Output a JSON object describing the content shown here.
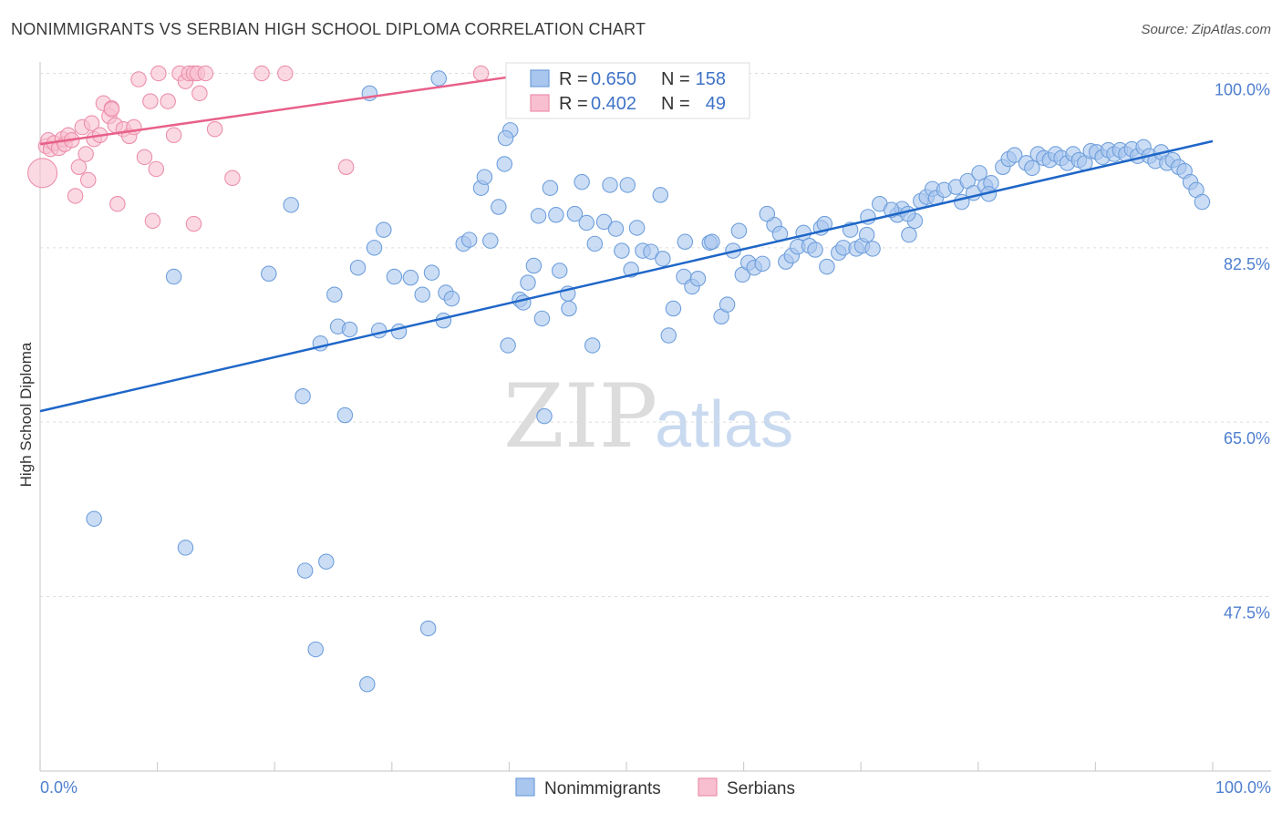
{
  "header": {
    "title": "NONIMMIGRANTS VS SERBIAN HIGH SCHOOL DIPLOMA CORRELATION CHART",
    "source": "Source: ZipAtlas.com"
  },
  "watermark": {
    "zip": "ZIP",
    "atlas": "atlas"
  },
  "legend": {
    "nonimmigrants": {
      "r_label": "R =",
      "r_value": "0.650",
      "n_label": "N =",
      "n_value": "158"
    },
    "serbians": {
      "r_label": "R =",
      "r_value": "0.402",
      "n_label": "N =",
      "n_value": "49"
    }
  },
  "colors": {
    "nonimmigrants_fill": "#a9c6ee",
    "nonimmigrants_stroke": "#6f9fdc",
    "nonimmigrants_line": "#1e66c8",
    "serbians_fill": "#f8bfd0",
    "serbians_stroke": "#ec8fab",
    "serbians_line": "#e8608a"
  },
  "chart_data": {
    "type": "scatter",
    "title": "NONIMMIGRANTS VS SERBIAN HIGH SCHOOL DIPLOMA CORRELATION CHART",
    "xlabel": "",
    "ylabel": "High School Diploma",
    "xlim": [
      0,
      100
    ],
    "ylim": [
      30,
      102
    ],
    "x_tick_labels": [
      "0.0%",
      "100.0%"
    ],
    "y_ticks": [
      47.5,
      65.0,
      82.5,
      100.0
    ],
    "y_tick_labels": [
      "47.5%",
      "65.0%",
      "82.5%",
      "100.0%"
    ],
    "grid": true,
    "series": [
      {
        "name": "Nonimmigrants",
        "R": 0.65,
        "N": 158,
        "trend": {
          "x": [
            0,
            100
          ],
          "y": [
            66.1,
            93.2
          ]
        },
        "points": [
          [
            4.6,
            55.3
          ],
          [
            11.4,
            79.6
          ],
          [
            12.4,
            52.4
          ],
          [
            19.5,
            79.9
          ],
          [
            21.4,
            86.8
          ],
          [
            22.4,
            67.6
          ],
          [
            22.6,
            50.1
          ],
          [
            23.5,
            42.2
          ],
          [
            23.9,
            72.9
          ],
          [
            24.4,
            51.0
          ],
          [
            25.1,
            77.8
          ],
          [
            25.4,
            74.6
          ],
          [
            26.0,
            65.7
          ],
          [
            26.4,
            74.3
          ],
          [
            27.1,
            80.5
          ],
          [
            27.9,
            38.7
          ],
          [
            28.1,
            98.0
          ],
          [
            28.5,
            82.5
          ],
          [
            28.9,
            74.2
          ],
          [
            29.3,
            84.3
          ],
          [
            30.2,
            79.6
          ],
          [
            30.6,
            74.1
          ],
          [
            31.6,
            79.5
          ],
          [
            32.6,
            77.8
          ],
          [
            33.1,
            44.3
          ],
          [
            33.4,
            80.0
          ],
          [
            34.0,
            99.5
          ],
          [
            34.4,
            75.2
          ],
          [
            34.6,
            78.0
          ],
          [
            35.1,
            77.4
          ],
          [
            36.1,
            82.9
          ],
          [
            36.6,
            83.3
          ],
          [
            37.6,
            88.5
          ],
          [
            37.9,
            89.6
          ],
          [
            38.4,
            83.2
          ],
          [
            39.1,
            86.6
          ],
          [
            39.6,
            90.9
          ],
          [
            39.9,
            72.7
          ],
          [
            40.1,
            94.3
          ],
          [
            40.9,
            77.3
          ],
          [
            41.2,
            77.0
          ],
          [
            41.6,
            79.0
          ],
          [
            42.1,
            80.7
          ],
          [
            42.5,
            85.7
          ],
          [
            42.8,
            75.4
          ],
          [
            43.0,
            65.6
          ],
          [
            44.0,
            85.8
          ],
          [
            44.3,
            80.2
          ],
          [
            45.1,
            76.4
          ],
          [
            45.6,
            85.9
          ],
          [
            46.2,
            89.1
          ],
          [
            46.6,
            85.0
          ],
          [
            47.1,
            72.7
          ],
          [
            47.3,
            82.9
          ],
          [
            48.1,
            85.1
          ],
          [
            48.6,
            88.8
          ],
          [
            49.1,
            84.4
          ],
          [
            49.6,
            82.2
          ],
          [
            50.1,
            88.8
          ],
          [
            50.4,
            80.3
          ],
          [
            50.9,
            84.5
          ],
          [
            51.4,
            82.2
          ],
          [
            52.1,
            82.1
          ],
          [
            53.1,
            81.4
          ],
          [
            53.6,
            73.7
          ],
          [
            54.0,
            76.4
          ],
          [
            54.9,
            79.6
          ],
          [
            55.6,
            78.6
          ],
          [
            56.1,
            79.4
          ],
          [
            57.1,
            83.0
          ],
          [
            57.3,
            83.1
          ],
          [
            58.1,
            75.6
          ],
          [
            58.6,
            76.8
          ],
          [
            59.6,
            84.2
          ],
          [
            59.9,
            79.8
          ],
          [
            60.4,
            81.0
          ],
          [
            60.9,
            80.5
          ],
          [
            61.6,
            80.9
          ],
          [
            62.6,
            84.8
          ],
          [
            63.1,
            83.9
          ],
          [
            63.6,
            81.1
          ],
          [
            64.1,
            81.7
          ],
          [
            64.6,
            82.6
          ],
          [
            65.1,
            84.0
          ],
          [
            65.6,
            82.7
          ],
          [
            66.1,
            82.3
          ],
          [
            66.6,
            84.5
          ],
          [
            67.1,
            80.6
          ],
          [
            68.1,
            82.0
          ],
          [
            68.5,
            82.5
          ],
          [
            69.1,
            84.3
          ],
          [
            69.6,
            82.4
          ],
          [
            70.1,
            82.7
          ],
          [
            70.5,
            83.8
          ],
          [
            71.0,
            82.4
          ],
          [
            71.6,
            86.9
          ],
          [
            73.1,
            85.8
          ],
          [
            73.5,
            86.4
          ],
          [
            74.1,
            83.8
          ],
          [
            74.6,
            85.2
          ],
          [
            75.1,
            87.2
          ],
          [
            75.6,
            87.6
          ],
          [
            76.1,
            88.4
          ],
          [
            76.4,
            87.5
          ],
          [
            77.1,
            88.3
          ],
          [
            78.1,
            88.6
          ],
          [
            78.6,
            87.1
          ],
          [
            79.1,
            89.2
          ],
          [
            79.6,
            88.0
          ],
          [
            80.1,
            90.0
          ],
          [
            80.6,
            88.7
          ],
          [
            81.1,
            89.0
          ],
          [
            82.1,
            90.6
          ],
          [
            82.6,
            91.4
          ],
          [
            83.1,
            91.8
          ],
          [
            84.1,
            91.0
          ],
          [
            84.6,
            90.5
          ],
          [
            85.1,
            91.9
          ],
          [
            85.6,
            91.5
          ],
          [
            86.1,
            91.3
          ],
          [
            86.6,
            91.9
          ],
          [
            87.1,
            91.5
          ],
          [
            87.6,
            91.0
          ],
          [
            88.1,
            91.9
          ],
          [
            88.6,
            91.3
          ],
          [
            89.1,
            91.0
          ],
          [
            89.6,
            92.2
          ],
          [
            90.1,
            92.1
          ],
          [
            90.6,
            91.6
          ],
          [
            91.1,
            92.3
          ],
          [
            91.6,
            91.9
          ],
          [
            92.1,
            92.3
          ],
          [
            92.6,
            91.9
          ],
          [
            93.1,
            92.4
          ],
          [
            93.6,
            91.7
          ],
          [
            94.1,
            92.6
          ],
          [
            94.6,
            91.7
          ],
          [
            95.1,
            91.2
          ],
          [
            95.6,
            92.1
          ],
          [
            96.1,
            91.0
          ],
          [
            96.6,
            91.3
          ],
          [
            97.1,
            90.6
          ],
          [
            97.6,
            90.2
          ],
          [
            98.1,
            89.1
          ],
          [
            98.6,
            88.3
          ],
          [
            99.1,
            87.1
          ],
          [
            39.7,
            93.5
          ],
          [
            43.5,
            88.5
          ],
          [
            52.9,
            87.8
          ],
          [
            45.0,
            77.9
          ],
          [
            70.6,
            85.6
          ],
          [
            62.0,
            85.9
          ],
          [
            66.9,
            84.9
          ],
          [
            55.0,
            83.1
          ],
          [
            59.1,
            82.2
          ],
          [
            74.0,
            85.9
          ],
          [
            80.9,
            87.9
          ],
          [
            72.6,
            86.3
          ]
        ]
      },
      {
        "name": "Serbians",
        "R": 0.402,
        "N": 49,
        "trend": {
          "x": [
            0,
            41
          ],
          "y": [
            92.9,
            99.8
          ]
        },
        "points": [
          [
            0.2,
            90.0
          ],
          [
            0.5,
            92.7
          ],
          [
            0.7,
            93.3
          ],
          [
            0.9,
            92.4
          ],
          [
            1.2,
            93.0
          ],
          [
            1.6,
            92.5
          ],
          [
            1.9,
            93.4
          ],
          [
            2.1,
            92.9
          ],
          [
            2.4,
            93.8
          ],
          [
            2.7,
            93.3
          ],
          [
            3.0,
            87.7
          ],
          [
            3.3,
            90.6
          ],
          [
            3.6,
            94.6
          ],
          [
            3.9,
            91.9
          ],
          [
            4.1,
            89.3
          ],
          [
            4.4,
            95.0
          ],
          [
            4.6,
            93.4
          ],
          [
            5.1,
            93.8
          ],
          [
            5.4,
            97.0
          ],
          [
            5.9,
            95.7
          ],
          [
            6.1,
            96.5
          ],
          [
            6.4,
            94.8
          ],
          [
            6.1,
            96.4
          ],
          [
            6.6,
            86.9
          ],
          [
            7.1,
            94.4
          ],
          [
            7.6,
            93.7
          ],
          [
            8.0,
            94.6
          ],
          [
            8.4,
            99.4
          ],
          [
            8.9,
            91.6
          ],
          [
            9.4,
            97.2
          ],
          [
            9.6,
            85.2
          ],
          [
            9.9,
            90.4
          ],
          [
            10.1,
            100.0
          ],
          [
            10.9,
            97.2
          ],
          [
            11.4,
            93.8
          ],
          [
            11.9,
            100.0
          ],
          [
            12.4,
            99.2
          ],
          [
            12.7,
            100.0
          ],
          [
            13.1,
            100.0
          ],
          [
            13.1,
            84.9
          ],
          [
            13.4,
            100.0
          ],
          [
            13.6,
            98.0
          ],
          [
            14.1,
            100.0
          ],
          [
            14.9,
            94.4
          ],
          [
            16.4,
            89.5
          ],
          [
            18.9,
            100.0
          ],
          [
            20.9,
            100.0
          ],
          [
            26.1,
            90.6
          ],
          [
            37.6,
            100.0
          ]
        ]
      }
    ]
  },
  "bottom_legend": {
    "nonimmigrants": "Nonimmigrants",
    "serbians": "Serbians"
  }
}
